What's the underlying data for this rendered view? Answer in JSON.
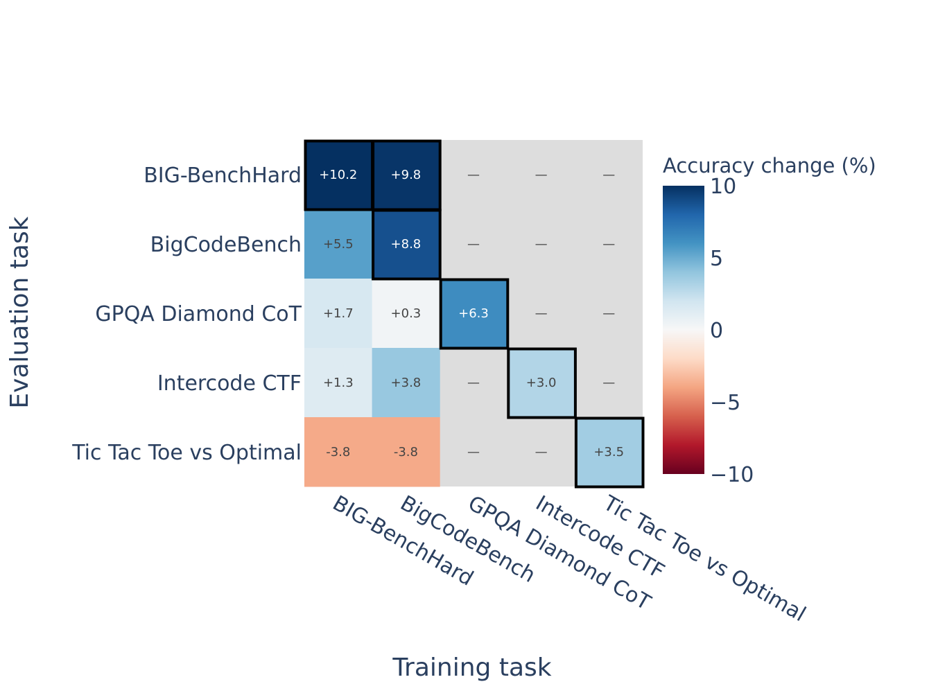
{
  "chart_data": {
    "type": "heatmap",
    "xlabel": "Training task",
    "ylabel": "Evaluation task",
    "x_categories": [
      "BIG-BenchHard",
      "BigCodeBench",
      "GPQA Diamond CoT",
      "Intercode CTF",
      "Tic Tac Toe vs Optimal"
    ],
    "y_categories": [
      "BIG-BenchHard",
      "BigCodeBench",
      "GPQA Diamond CoT",
      "Intercode CTF",
      "Tic Tac Toe vs Optimal"
    ],
    "values": [
      [
        10.2,
        9.8,
        null,
        null,
        null
      ],
      [
        5.5,
        8.8,
        null,
        null,
        null
      ],
      [
        1.7,
        0.3,
        6.3,
        null,
        null
      ],
      [
        1.3,
        3.8,
        null,
        3.0,
        null
      ],
      [
        -3.8,
        -3.8,
        null,
        null,
        3.5
      ]
    ],
    "labels": [
      [
        "+10.2",
        "+9.8",
        "—",
        "—",
        "—"
      ],
      [
        "+5.5",
        "+8.8",
        "—",
        "—",
        "—"
      ],
      [
        "+1.7",
        "+0.3",
        "+6.3",
        "—",
        "—"
      ],
      [
        "+1.3",
        "+3.8",
        "—",
        "+3.0",
        "—"
      ],
      [
        "-3.8",
        "-3.8",
        "—",
        "—",
        "+3.5"
      ]
    ],
    "highlighted": [
      [
        0,
        0
      ],
      [
        0,
        1
      ],
      [
        1,
        1
      ],
      [
        2,
        2
      ],
      [
        3,
        3
      ],
      [
        4,
        4
      ]
    ],
    "colorbar": {
      "title": "Accuracy change (%)",
      "range": [
        -10,
        10
      ],
      "ticks": [
        10,
        5,
        0,
        -5,
        -10
      ],
      "tick_labels": [
        "10",
        "5",
        "0",
        "−5",
        "−10"
      ],
      "colorscale": "RdBu"
    },
    "missing_color": "#dddddd"
  }
}
